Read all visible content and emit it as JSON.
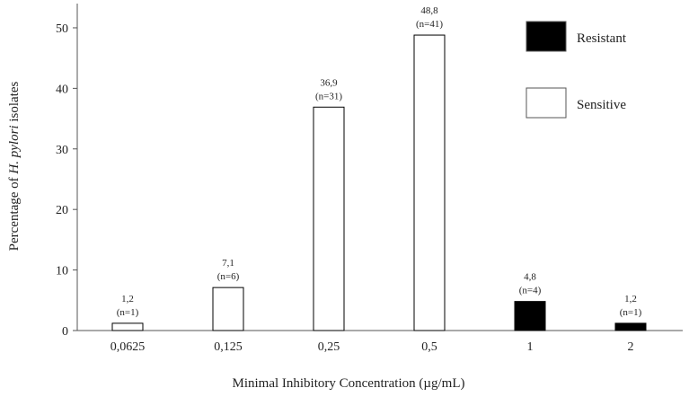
{
  "chart_data": {
    "type": "bar",
    "ylabel_prefix": "Percentage of ",
    "ylabel_italic": "H. pylori",
    "ylabel_suffix": " isolates",
    "xlabel": "Minimal Inhibitory Concentration (µg/mL)",
    "categories": [
      "0,0625",
      "0,125",
      "0,25",
      "0,5",
      "1",
      "2"
    ],
    "values": [
      1.2,
      7.1,
      36.9,
      48.8,
      4.8,
      1.2
    ],
    "value_labels": [
      "1,2",
      "7,1",
      "36,9",
      "48,8",
      "4,8",
      "1,2"
    ],
    "count_labels": [
      "(n=1)",
      "(n=6)",
      "(n=31)",
      "(n=41)",
      "(n=4)",
      "(n=1)"
    ],
    "groups": [
      "Sensitive",
      "Sensitive",
      "Sensitive",
      "Sensitive",
      "Resistant",
      "Resistant"
    ],
    "ylim": [
      0,
      54
    ],
    "yticks": [
      0,
      10,
      20,
      30,
      40,
      50
    ],
    "grid": false,
    "legend_position": "top-right",
    "legend": [
      {
        "label": "Resistant",
        "fill": "#000000"
      },
      {
        "label": "Sensitive",
        "fill": "#ffffff"
      }
    ],
    "colors": {
      "resistant": "#000000",
      "sensitive": "#ffffff",
      "outline": "#000000"
    }
  }
}
